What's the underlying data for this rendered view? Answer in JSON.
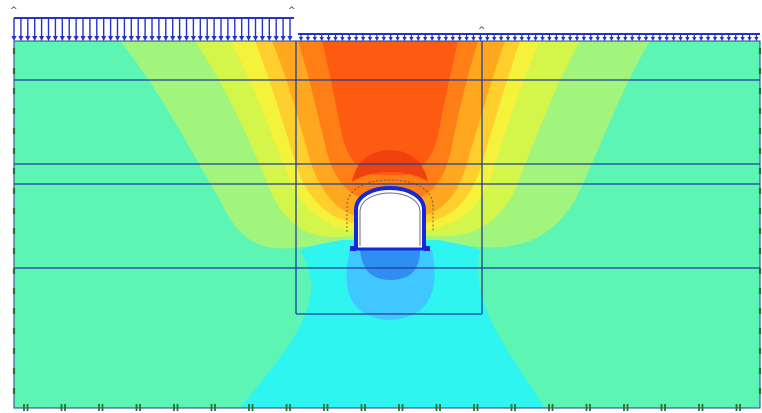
{
  "figure": {
    "background": "#ffffff",
    "colors": {
      "soil_base": "#5cf5b4",
      "contour_cyan": "#2ef5f0",
      "contour_lightblue": "#41c7ff",
      "contour_blue": "#2f8ef2",
      "contour_lightgreen": "#a2f57c",
      "contour_yellowgreen": "#d4f54a",
      "contour_yellow": "#f4f23a",
      "contour_lightorange": "#ffcf2e",
      "contour_orange": "#ffa71e",
      "contour_darkorange": "#ff7e16",
      "contour_red": "#ff5a12",
      "layer_line": "#1f3f9a",
      "load_arrow": "#2233c8",
      "tunnel_lining": "#1428d8",
      "fixity_marker": "#2e6d2e"
    },
    "icons": [
      "distributed-load-arrows-icon",
      "tunnel-lining-icon",
      "fixity-marker-icon",
      "load-label-caret-icon"
    ],
    "load_labels": [
      "^",
      "^",
      "^"
    ]
  }
}
